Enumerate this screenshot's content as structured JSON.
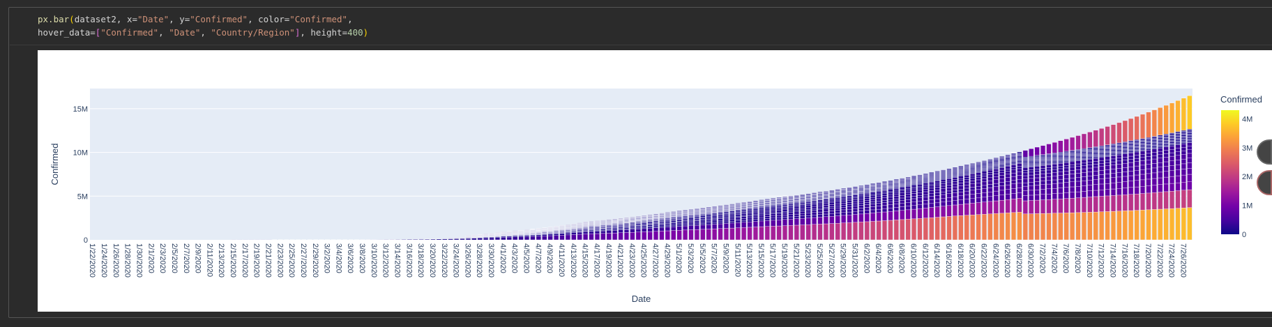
{
  "code": {
    "line1": {
      "fn": "px.bar",
      "args": [
        {
          "plain": "dataset2, x="
        },
        {
          "str": "\"Date\""
        },
        {
          "plain": ", y="
        },
        {
          "str": "\"Confirmed\""
        },
        {
          "plain": ", color="
        },
        {
          "str": "\"Confirmed\""
        },
        {
          "plain": ","
        }
      ]
    },
    "line2": {
      "prefix": "hover_data=",
      "list": [
        "\"Confirmed\"",
        "\"Date\"",
        "\"Country/Region\""
      ],
      "suffix_key": ", height=",
      "height": "400"
    }
  },
  "chart_data": {
    "type": "bar",
    "title": "",
    "xlabel": "Date",
    "ylabel": "Confirmed",
    "ylim": [
      0,
      17300000
    ],
    "yticks": [
      {
        "value": 0,
        "label": "0"
      },
      {
        "value": 5000000,
        "label": "5M"
      },
      {
        "value": 10000000,
        "label": "10M"
      },
      {
        "value": 15000000,
        "label": "15M"
      }
    ],
    "x_start": "1/22/2020",
    "x_end": "7/27/2020",
    "x_tick_labels": [
      "1/22/2020",
      "1/24/2020",
      "1/26/2020",
      "1/28/2020",
      "1/30/2020",
      "2/1/2020",
      "2/3/2020",
      "2/5/2020",
      "2/7/2020",
      "2/9/2020",
      "2/11/2020",
      "2/13/2020",
      "2/15/2020",
      "2/17/2020",
      "2/19/2020",
      "2/21/2020",
      "2/23/2020",
      "2/25/2020",
      "2/27/2020",
      "2/29/2020",
      "3/2/2020",
      "3/4/2020",
      "3/6/2020",
      "3/8/2020",
      "3/10/2020",
      "3/12/2020",
      "3/14/2020",
      "3/16/2020",
      "3/18/2020",
      "3/20/2020",
      "3/22/2020",
      "3/24/2020",
      "3/26/2020",
      "3/28/2020",
      "3/30/2020",
      "4/1/2020",
      "4/3/2020",
      "4/5/2020",
      "4/7/2020",
      "4/9/2020",
      "4/11/2020",
      "4/13/2020",
      "4/15/2020",
      "4/17/2020",
      "4/19/2020",
      "4/21/2020",
      "4/23/2020",
      "4/25/2020",
      "4/27/2020",
      "4/29/2020",
      "5/1/2020",
      "5/3/2020",
      "5/5/2020",
      "5/7/2020",
      "5/9/2020",
      "5/11/2020",
      "5/13/2020",
      "5/15/2020",
      "5/17/2020",
      "5/19/2020",
      "5/21/2020",
      "5/23/2020",
      "5/25/2020",
      "5/27/2020",
      "5/29/2020",
      "5/31/2020",
      "6/2/2020",
      "6/4/2020",
      "6/6/2020",
      "6/8/2020",
      "6/10/2020",
      "6/12/2020",
      "6/14/2020",
      "6/16/2020",
      "6/18/2020",
      "6/20/2020",
      "6/22/2020",
      "6/24/2020",
      "6/26/2020",
      "6/28/2020",
      "6/30/2020",
      "7/2/2020",
      "7/4/2020",
      "7/6/2020",
      "7/8/2020",
      "7/10/2020",
      "7/12/2020",
      "7/14/2020",
      "7/16/2020",
      "7/18/2020",
      "7/20/2020",
      "7/22/2020",
      "7/24/2020",
      "7/26/2020"
    ],
    "totals_approx": [
      {
        "date": "1/22/2020",
        "value": 555
      },
      {
        "date": "2/15/2020",
        "value": 69000
      },
      {
        "date": "3/10/2020",
        "value": 119000
      },
      {
        "date": "3/22/2020",
        "value": 337000
      },
      {
        "date": "4/1/2020",
        "value": 930000
      },
      {
        "date": "4/15/2020",
        "value": 2050000
      },
      {
        "date": "5/1/2020",
        "value": 3350000
      },
      {
        "date": "5/15/2020",
        "value": 4580000
      },
      {
        "date": "6/1/2020",
        "value": 6200000
      },
      {
        "date": "6/15/2020",
        "value": 8000000
      },
      {
        "date": "7/1/2020",
        "value": 10600000
      },
      {
        "date": "7/15/2020",
        "value": 13400000
      },
      {
        "date": "7/27/2020",
        "value": 16480000
      }
    ],
    "colorbar": {
      "title": "Confirmed",
      "range": [
        0,
        4300000
      ],
      "ticks": [
        {
          "value": 0,
          "label": "0"
        },
        {
          "value": 1000000,
          "label": "1M"
        },
        {
          "value": 2000000,
          "label": "2M"
        },
        {
          "value": 3000000,
          "label": "3M"
        },
        {
          "value": 4000000,
          "label": "4M"
        }
      ],
      "colorscale": [
        "#0d0887",
        "#46039f",
        "#7201a8",
        "#9c179e",
        "#bd3786",
        "#d8576b",
        "#ed7953",
        "#fb9f3a",
        "#fdca26",
        "#f0f921"
      ]
    },
    "plot_bg": "#e5ecf6",
    "grid": true
  }
}
